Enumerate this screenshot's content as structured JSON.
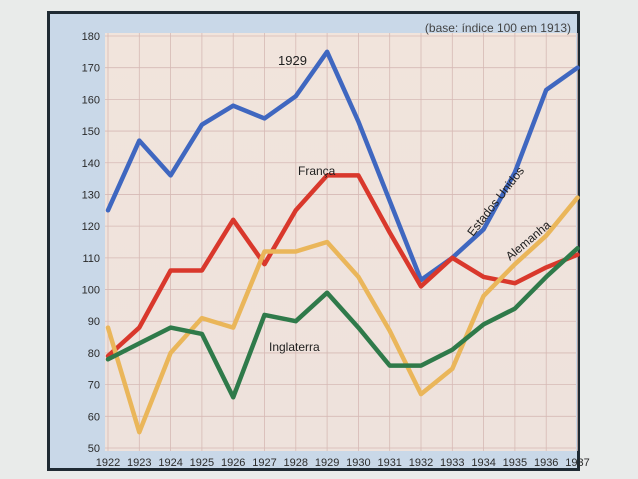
{
  "chart_data": {
    "type": "line",
    "title": "",
    "subtitle": "(base: índice 100 em 1913)",
    "xlabel": "",
    "ylabel": "",
    "ylim": [
      50,
      180
    ],
    "grid": true,
    "x": [
      "1922",
      "1923",
      "1924",
      "1925",
      "1926",
      "1927",
      "1928",
      "1929",
      "1930",
      "1931",
      "1932",
      "1933",
      "1934",
      "1935",
      "1936",
      "1937"
    ],
    "yticks": [
      50,
      60,
      70,
      80,
      90,
      100,
      110,
      120,
      130,
      140,
      150,
      160,
      170,
      180
    ],
    "series": [
      {
        "name": "Estados Unidos",
        "color": "#3f67c0",
        "values": [
          125,
          147,
          136,
          152,
          158,
          154,
          161,
          175,
          153,
          128,
          103,
          110,
          119,
          137,
          163,
          170
        ]
      },
      {
        "name": "França",
        "color": "#d9382c",
        "values": [
          79,
          88,
          106,
          106,
          122,
          108,
          125,
          136,
          136,
          118,
          101,
          110,
          104,
          102,
          107,
          111
        ]
      },
      {
        "name": "Alemanha",
        "color": "#eab65a",
        "values": [
          88,
          55,
          80,
          91,
          88,
          112,
          112,
          115,
          104,
          87,
          67,
          75,
          98,
          108,
          117,
          129
        ]
      },
      {
        "name": "Inglaterra",
        "color": "#2f7a4a",
        "values": [
          78,
          83,
          88,
          86,
          66,
          92,
          90,
          99,
          88,
          76,
          76,
          81,
          89,
          94,
          104,
          113
        ]
      }
    ],
    "annotations": [
      {
        "text": "1929"
      },
      {
        "text": "França"
      },
      {
        "text": "Estados Unidos"
      },
      {
        "text": "Alemanha"
      },
      {
        "text": "Inglaterra"
      }
    ]
  }
}
